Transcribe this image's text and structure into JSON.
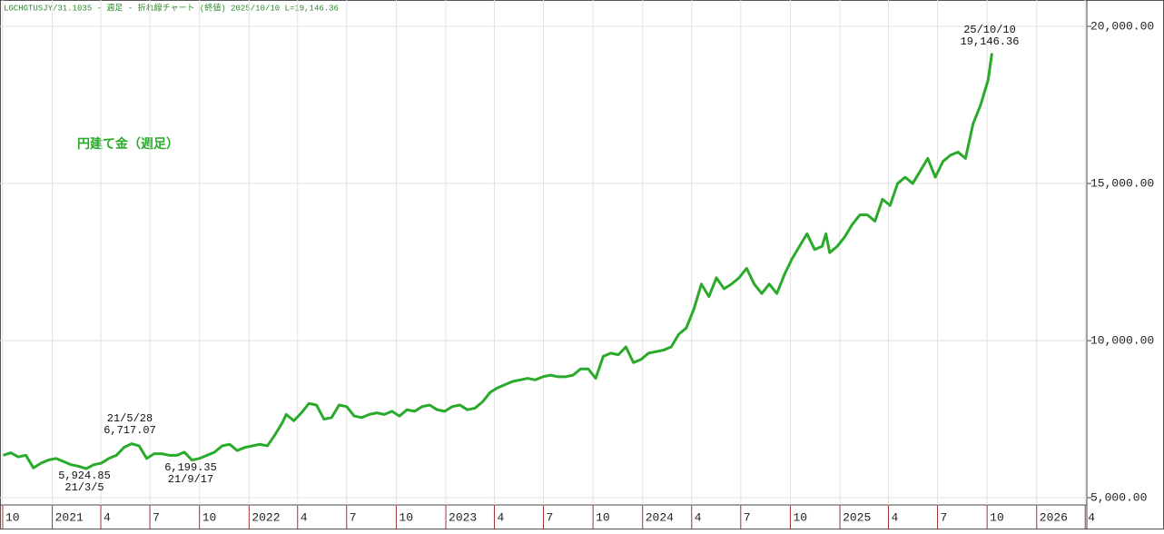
{
  "chart_data": {
    "type": "line",
    "header": "LGCHGTUSJY/31.1035 - 週足 - 折れ線チャート (終値)  2025/10/10 L=19,146.36",
    "title": "円建て金（週足）",
    "color": "#2aaa2a",
    "grid": true,
    "annotations": [
      [
        "25/10/10",
        "19,146.36"
      ],
      [
        "21/5/28",
        "6,717.07"
      ],
      [
        "5,924.85",
        "21/3/5"
      ],
      [
        "6,199.35",
        "21/9/17"
      ]
    ],
    "xlim": [
      "2020-09-26",
      "2026-04-04"
    ],
    "xticks": [
      {
        "value": "2020-10-01",
        "label": "10"
      },
      {
        "value": "2021-01-01",
        "label": "2021"
      },
      {
        "value": "2021-04-01",
        "label": "4"
      },
      {
        "value": "2021-07-01",
        "label": "7"
      },
      {
        "value": "2021-10-01",
        "label": "10"
      },
      {
        "value": "2022-01-01",
        "label": "2022"
      },
      {
        "value": "2022-04-01",
        "label": "4"
      },
      {
        "value": "2022-07-01",
        "label": "7"
      },
      {
        "value": "2022-10-01",
        "label": "10"
      },
      {
        "value": "2023-01-01",
        "label": "2023"
      },
      {
        "value": "2023-04-01",
        "label": "4"
      },
      {
        "value": "2023-07-01",
        "label": "7"
      },
      {
        "value": "2023-10-01",
        "label": "10"
      },
      {
        "value": "2024-01-01",
        "label": "2024"
      },
      {
        "value": "2024-04-01",
        "label": "4"
      },
      {
        "value": "2024-07-01",
        "label": "7"
      },
      {
        "value": "2024-10-01",
        "label": "10"
      },
      {
        "value": "2025-01-01",
        "label": "2025"
      },
      {
        "value": "2025-04-01",
        "label": "4"
      },
      {
        "value": "2025-07-01",
        "label": "7"
      },
      {
        "value": "2025-10-01",
        "label": "10"
      },
      {
        "value": "2026-01-01",
        "label": "2026"
      },
      {
        "value": "2026-04-01",
        "label": "4"
      }
    ],
    "ylim": [
      4770,
      20840
    ],
    "yticks": [
      {
        "value": 5000,
        "label": "5,000.00"
      },
      {
        "value": 10000,
        "label": "10,000.00"
      },
      {
        "value": 15000,
        "label": "15,000.00"
      },
      {
        "value": 20000,
        "label": "20,000.00"
      }
    ],
    "x": [
      "2020-10-02",
      "2020-10-16",
      "2020-10-30",
      "2020-11-13",
      "2020-11-27",
      "2020-12-11",
      "2020-12-25",
      "2021-01-08",
      "2021-01-22",
      "2021-02-05",
      "2021-02-19",
      "2021-03-05",
      "2021-03-19",
      "2021-04-02",
      "2021-04-16",
      "2021-04-30",
      "2021-05-14",
      "2021-05-28",
      "2021-06-11",
      "2021-06-25",
      "2021-07-09",
      "2021-07-23",
      "2021-08-06",
      "2021-08-20",
      "2021-09-03",
      "2021-09-17",
      "2021-10-01",
      "2021-10-15",
      "2021-10-29",
      "2021-11-12",
      "2021-11-26",
      "2021-12-10",
      "2021-12-24",
      "2022-01-07",
      "2022-01-21",
      "2022-02-04",
      "2022-02-18",
      "2022-03-04",
      "2022-03-11",
      "2022-03-25",
      "2022-04-08",
      "2022-04-22",
      "2022-05-06",
      "2022-05-20",
      "2022-06-03",
      "2022-06-17",
      "2022-07-01",
      "2022-07-15",
      "2022-07-29",
      "2022-08-12",
      "2022-08-26",
      "2022-09-09",
      "2022-09-23",
      "2022-10-07",
      "2022-10-21",
      "2022-11-04",
      "2022-11-18",
      "2022-12-02",
      "2022-12-16",
      "2022-12-30",
      "2023-01-13",
      "2023-01-27",
      "2023-02-10",
      "2023-02-24",
      "2023-03-10",
      "2023-03-24",
      "2023-04-07",
      "2023-04-21",
      "2023-05-05",
      "2023-05-19",
      "2023-06-02",
      "2023-06-16",
      "2023-06-30",
      "2023-07-14",
      "2023-07-28",
      "2023-08-11",
      "2023-08-25",
      "2023-09-08",
      "2023-09-22",
      "2023-10-06",
      "2023-10-20",
      "2023-11-03",
      "2023-11-17",
      "2023-12-01",
      "2023-12-15",
      "2023-12-29",
      "2024-01-12",
      "2024-01-26",
      "2024-02-09",
      "2024-02-23",
      "2024-03-08",
      "2024-03-22",
      "2024-04-05",
      "2024-04-19",
      "2024-05-03",
      "2024-05-17",
      "2024-05-31",
      "2024-06-14",
      "2024-06-28",
      "2024-07-12",
      "2024-07-26",
      "2024-08-09",
      "2024-08-23",
      "2024-09-06",
      "2024-09-20",
      "2024-10-04",
      "2024-10-18",
      "2024-11-01",
      "2024-11-15",
      "2024-11-29",
      "2024-12-06",
      "2024-12-13",
      "2024-12-27",
      "2025-01-10",
      "2025-01-24",
      "2025-02-07",
      "2025-02-21",
      "2025-03-07",
      "2025-03-21",
      "2025-04-04",
      "2025-04-18",
      "2025-05-02",
      "2025-05-16",
      "2025-05-30",
      "2025-06-13",
      "2025-06-27",
      "2025-07-11",
      "2025-07-25",
      "2025-08-08",
      "2025-08-22",
      "2025-09-05",
      "2025-09-19",
      "2025-10-03",
      "2025-10-10"
    ],
    "values": [
      6350,
      6430,
      6300,
      6350,
      5950,
      6100,
      6200,
      6250,
      6150,
      6050,
      6000,
      5924.85,
      6050,
      6100,
      6250,
      6350,
      6600,
      6717.07,
      6650,
      6250,
      6400,
      6400,
      6350,
      6350,
      6450,
      6199.35,
      6250,
      6350,
      6450,
      6650,
      6700,
      6500,
      6600,
      6650,
      6700,
      6650,
      7000,
      7400,
      7650,
      7450,
      7700,
      8000,
      7950,
      7500,
      7550,
      7950,
      7900,
      7600,
      7550,
      7650,
      7700,
      7650,
      7750,
      7600,
      7800,
      7750,
      7900,
      7950,
      7800,
      7750,
      7900,
      7950,
      7800,
      7850,
      8050,
      8350,
      8500,
      8600,
      8700,
      8750,
      8800,
      8750,
      8850,
      8900,
      8850,
      8850,
      8900,
      9100,
      9100,
      8800,
      9500,
      9600,
      9550,
      9800,
      9300,
      9400,
      9600,
      9650,
      9700,
      9800,
      10200,
      10400,
      11000,
      11800,
      11400,
      12000,
      11650,
      11800,
      12000,
      12300,
      11800,
      11500,
      11800,
      11500,
      12100,
      12600,
      13000,
      13400,
      12900,
      13000,
      13400,
      12800,
      13000,
      13300,
      13700,
      14000,
      14000,
      13800,
      14500,
      14300,
      15000,
      15200,
      15000,
      15400,
      15800,
      15200,
      15700,
      15900,
      16000,
      15800,
      16900,
      17500,
      18300,
      19146.36
    ]
  }
}
